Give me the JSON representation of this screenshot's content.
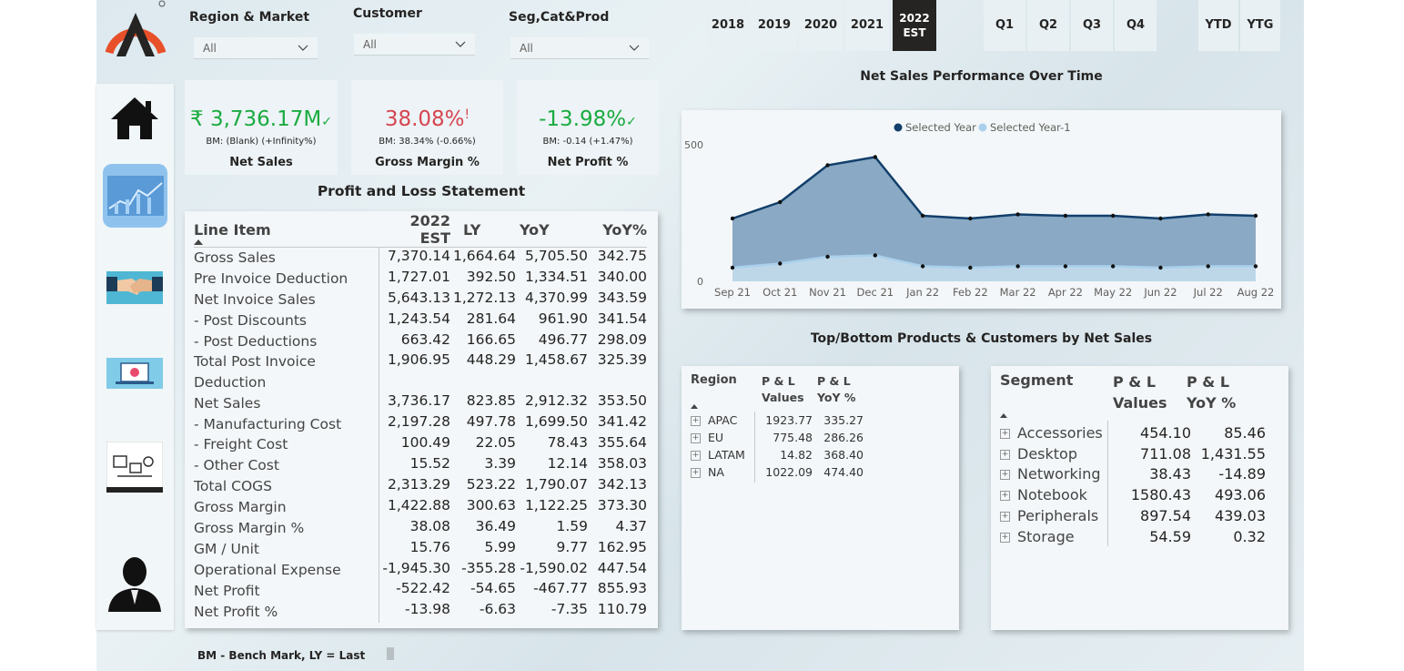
{
  "filters": [
    {
      "label": "Region & Market",
      "value": "All"
    },
    {
      "label": "Customer",
      "value": "All"
    },
    {
      "label": "Seg,Cat&Prod",
      "value": "All"
    }
  ],
  "years": [
    "2018",
    "2019",
    "2020",
    "2021",
    "2022\nEST"
  ],
  "quarters": [
    "Q1",
    "Q2",
    "Q3",
    "Q4"
  ],
  "periods": [
    "YTD",
    "YTG"
  ],
  "kpis": [
    {
      "value": "₹ 3,736.17M",
      "mark": "✓",
      "bm": "BM: (Blank) (+Infinity%)",
      "label": "Net Sales",
      "color": "#1aab40"
    },
    {
      "value": "38.08%",
      "mark": "!",
      "bm": "BM: 38.34% (-0.66%)",
      "label": "Gross Margin %",
      "color": "#d64550"
    },
    {
      "value": "-13.98%",
      "mark": "✓",
      "bm": "BM: -0.14 (+1.47%)",
      "label": "Net Profit %",
      "color": "#1aab40"
    }
  ],
  "pl": {
    "title": "Profit and Loss Statement",
    "headers": [
      "Line Item",
      "2022 EST",
      "LY",
      "YoY",
      "YoY%"
    ],
    "rows": [
      [
        "Gross Sales",
        "7,370.14",
        "1,664.64",
        "5,705.50",
        "342.75"
      ],
      [
        "Pre Invoice Deduction",
        "1,727.01",
        "392.50",
        "1,334.51",
        "340.00"
      ],
      [
        "Net Invoice Sales",
        "5,643.13",
        "1,272.13",
        "4,370.99",
        "343.59"
      ],
      [
        "- Post Discounts",
        "1,243.54",
        "281.64",
        "961.90",
        "341.54"
      ],
      [
        "- Post Deductions",
        "663.42",
        "166.65",
        "496.77",
        "298.09"
      ],
      [
        "Total Post Invoice\nDeduction",
        "1,906.95",
        "448.29",
        "1,458.67",
        "325.39"
      ],
      [
        "Net Sales",
        "3,736.17",
        "823.85",
        "2,912.32",
        "353.50"
      ],
      [
        "- Manufacturing Cost",
        "2,197.28",
        "497.78",
        "1,699.50",
        "341.42"
      ],
      [
        "- Freight Cost",
        "100.49",
        "22.05",
        "78.43",
        "355.64"
      ],
      [
        "- Other Cost",
        "15.52",
        "3.39",
        "12.14",
        "358.03"
      ],
      [
        "Total COGS",
        "2,313.29",
        "523.22",
        "1,790.07",
        "342.13"
      ],
      [
        "Gross Margin",
        "1,422.88",
        "300.63",
        "1,122.25",
        "373.30"
      ],
      [
        "Gross Margin %",
        "38.08",
        "36.49",
        "1.59",
        "4.37"
      ],
      [
        "GM / Unit",
        "15.76",
        "5.99",
        "9.77",
        "162.95"
      ],
      [
        "Operational Expense",
        "-1,945.30",
        "-355.28",
        "-1,590.02",
        "447.54"
      ],
      [
        "Net Profit",
        "-522.42",
        "-54.65",
        "-467.77",
        "855.93"
      ],
      [
        "Net Profit %",
        "-13.98",
        "-6.63",
        "-7.35",
        "110.79"
      ]
    ]
  },
  "chart": {
    "title": "Net Sales Performance Over Time",
    "legend": [
      "Selected Year",
      "Selected Year-1"
    ],
    "colors": {
      "selected": "#123f6b",
      "previous": "#a9d0ec"
    }
  },
  "chart_data": {
    "type": "area",
    "categories": [
      "Sep 21",
      "Oct 21",
      "Nov 21",
      "Dec 21",
      "Jan 22",
      "Feb 22",
      "Mar 22",
      "Apr 22",
      "May 22",
      "Jun 22",
      "Jul 22",
      "Aug 22"
    ],
    "yticks": [
      "0",
      "500"
    ],
    "ylim": [
      0,
      560
    ],
    "series": [
      {
        "name": "Selected Year",
        "values": [
          230,
          290,
          425,
          455,
          240,
          230,
          245,
          240,
          240,
          230,
          245,
          240
        ]
      },
      {
        "name": "Selected Year-1",
        "values": [
          50,
          65,
          90,
          95,
          55,
          50,
          55,
          55,
          55,
          50,
          55,
          55
        ]
      }
    ],
    "legend_position": "top-center"
  },
  "topbottom": {
    "title": "Top/Bottom Products & Customers by Net Sales",
    "region": {
      "headers": [
        "Region",
        "P & L\nValues",
        "P & L\nYoY %"
      ],
      "rows": [
        [
          "APAC",
          "1923.77",
          "335.27"
        ],
        [
          "EU",
          "775.48",
          "286.26"
        ],
        [
          "LATAM",
          "14.82",
          "368.40"
        ],
        [
          "NA",
          "1022.09",
          "474.40"
        ]
      ]
    },
    "segment": {
      "headers": [
        "Segment",
        "P & L\nValues",
        "P & L\nYoY %"
      ],
      "rows": [
        [
          "Accessories",
          "454.10",
          "85.46"
        ],
        [
          "Desktop",
          "711.08",
          "1,431.55"
        ],
        [
          "Networking",
          "38.43",
          "-14.89"
        ],
        [
          "Notebook",
          "1580.43",
          "493.06"
        ],
        [
          "Peripherals",
          "897.54",
          "439.03"
        ],
        [
          "Storage",
          "54.59",
          "0.32"
        ]
      ]
    }
  },
  "footer": "BM - Bench Mark,  LY = Last"
}
